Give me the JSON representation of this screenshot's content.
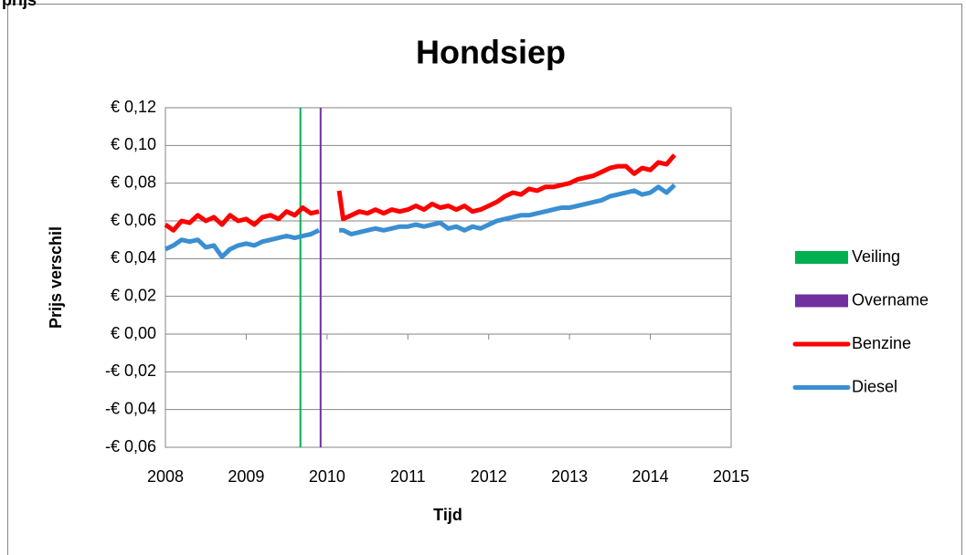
{
  "caption": "prijs",
  "chart_data": {
    "type": "line",
    "title": "Hondsiep",
    "xlabel": "Tijd",
    "ylabel": "Prijs verschil",
    "xlim": [
      2008,
      2015
    ],
    "xticks": [
      2008,
      2009,
      2010,
      2011,
      2012,
      2013,
      2014,
      2015
    ],
    "ylim": [
      -0.06,
      0.12
    ],
    "yticks": [
      {
        "value": -0.06,
        "label": "-€ 0,06"
      },
      {
        "value": -0.04,
        "label": "-€ 0,04"
      },
      {
        "value": -0.02,
        "label": "-€ 0,02"
      },
      {
        "value": 0,
        "label": "€ 0,00"
      },
      {
        "value": 0.02,
        "label": "€ 0,02"
      },
      {
        "value": 0.04,
        "label": "€ 0,04"
      },
      {
        "value": 0.06,
        "label": "€ 0,06"
      },
      {
        "value": 0.08,
        "label": "€ 0,08"
      },
      {
        "value": 0.1,
        "label": "€ 0,10"
      },
      {
        "value": 0.12,
        "label": "€ 0,12"
      }
    ],
    "grid": true,
    "legend": "right",
    "series": [
      {
        "name": "Veiling",
        "color": "#00b050",
        "marker": "block",
        "x": [
          2009.67,
          2009.67
        ],
        "values": [
          -0.06,
          0.12
        ]
      },
      {
        "name": "Overname",
        "color": "#7030a0",
        "marker": "block",
        "x": [
          2009.92,
          2009.92
        ],
        "values": [
          -0.06,
          0.12
        ]
      },
      {
        "name": "Benzine",
        "color": "#ff0000",
        "marker": "line",
        "x": [
          2008.0,
          2008.1,
          2008.2,
          2008.3,
          2008.4,
          2008.5,
          2008.6,
          2008.7,
          2008.8,
          2008.9,
          2009.0,
          2009.1,
          2009.2,
          2009.3,
          2009.4,
          2009.5,
          2009.6,
          2009.7,
          2009.8,
          2009.9,
          2010.05,
          2010.15,
          2010.2,
          2010.3,
          2010.4,
          2010.5,
          2010.6,
          2010.7,
          2010.8,
          2010.9,
          2011.0,
          2011.1,
          2011.2,
          2011.3,
          2011.4,
          2011.5,
          2011.6,
          2011.7,
          2011.8,
          2011.9,
          2012.0,
          2012.1,
          2012.2,
          2012.3,
          2012.4,
          2012.5,
          2012.6,
          2012.7,
          2012.8,
          2012.9,
          2013.0,
          2013.1,
          2013.2,
          2013.3,
          2013.4,
          2013.5,
          2013.6,
          2013.7,
          2013.8,
          2013.9,
          2014.0,
          2014.1,
          2014.2,
          2014.3
        ],
        "values": [
          0.058,
          0.055,
          0.06,
          0.059,
          0.063,
          0.06,
          0.062,
          0.058,
          0.063,
          0.06,
          0.061,
          0.058,
          0.062,
          0.063,
          0.061,
          0.065,
          0.063,
          0.067,
          0.064,
          0.065,
          null,
          0.076,
          0.061,
          0.063,
          0.065,
          0.064,
          0.066,
          0.064,
          0.066,
          0.065,
          0.066,
          0.068,
          0.066,
          0.069,
          0.067,
          0.068,
          0.066,
          0.068,
          0.065,
          0.066,
          0.068,
          0.07,
          0.073,
          0.075,
          0.074,
          0.077,
          0.076,
          0.078,
          0.078,
          0.079,
          0.08,
          0.082,
          0.083,
          0.084,
          0.086,
          0.088,
          0.089,
          0.089,
          0.085,
          0.088,
          0.087,
          0.091,
          0.09,
          0.095
        ]
      },
      {
        "name": "Diesel",
        "color": "#3a8fd2",
        "marker": "line",
        "x": [
          2008.0,
          2008.1,
          2008.2,
          2008.3,
          2008.4,
          2008.5,
          2008.6,
          2008.7,
          2008.8,
          2008.9,
          2009.0,
          2009.1,
          2009.2,
          2009.3,
          2009.4,
          2009.5,
          2009.6,
          2009.7,
          2009.8,
          2009.9,
          2010.05,
          2010.15,
          2010.2,
          2010.3,
          2010.4,
          2010.5,
          2010.6,
          2010.7,
          2010.8,
          2010.9,
          2011.0,
          2011.1,
          2011.2,
          2011.3,
          2011.4,
          2011.5,
          2011.6,
          2011.7,
          2011.8,
          2011.9,
          2012.0,
          2012.1,
          2012.2,
          2012.3,
          2012.4,
          2012.5,
          2012.6,
          2012.7,
          2012.8,
          2012.9,
          2013.0,
          2013.1,
          2013.2,
          2013.3,
          2013.4,
          2013.5,
          2013.6,
          2013.7,
          2013.8,
          2013.9,
          2014.0,
          2014.1,
          2014.2,
          2014.3
        ],
        "values": [
          0.045,
          0.047,
          0.05,
          0.049,
          0.05,
          0.046,
          0.047,
          0.041,
          0.045,
          0.047,
          0.048,
          0.047,
          0.049,
          0.05,
          0.051,
          0.052,
          0.051,
          0.052,
          0.053,
          0.055,
          null,
          0.055,
          0.055,
          0.053,
          0.054,
          0.055,
          0.056,
          0.055,
          0.056,
          0.057,
          0.057,
          0.058,
          0.057,
          0.058,
          0.059,
          0.056,
          0.057,
          0.055,
          0.057,
          0.056,
          0.058,
          0.06,
          0.061,
          0.062,
          0.063,
          0.063,
          0.064,
          0.065,
          0.066,
          0.067,
          0.067,
          0.068,
          0.069,
          0.07,
          0.071,
          0.073,
          0.074,
          0.075,
          0.076,
          0.074,
          0.075,
          0.078,
          0.075,
          0.079
        ]
      }
    ]
  }
}
